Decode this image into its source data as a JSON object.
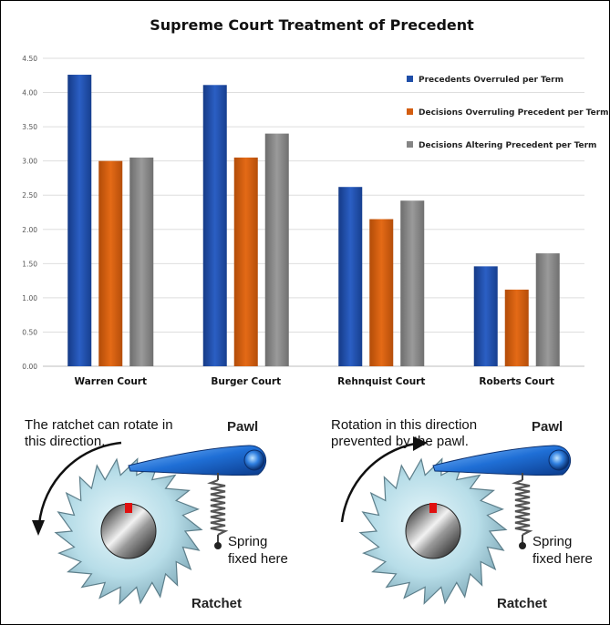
{
  "chart_data": {
    "type": "bar",
    "title": "Supreme Court Treatment of Precedent",
    "categories": [
      "Warren Court",
      "Burger Court",
      "Rehnquist Court",
      "Roberts Court"
    ],
    "series": [
      {
        "name": "Precedents Overruled per Term",
        "color": "#1f4ea8",
        "values": [
          4.26,
          4.11,
          2.62,
          1.46
        ]
      },
      {
        "name": "Decisions Overruling Precedent per Term",
        "color": "#d35d10",
        "values": [
          3.0,
          3.05,
          2.15,
          1.12
        ]
      },
      {
        "name": "Decisions Altering Precedent per Term",
        "color": "#858585",
        "values": [
          3.05,
          3.4,
          2.42,
          1.65
        ]
      }
    ],
    "yticks": [
      "0.00",
      "0.50",
      "1.00",
      "1.50",
      "2.00",
      "2.50",
      "3.00",
      "3.50",
      "4.00",
      "4.50"
    ],
    "ylim": [
      0,
      4.5
    ],
    "grid": true,
    "legend_position": "top-right"
  },
  "diagram": {
    "left": {
      "caption_line1": "The ratchet can rotate in",
      "caption_line2": "this direction.",
      "pawl_label": "Pawl",
      "spring_label_line1": "Spring",
      "spring_label_line2": "fixed here",
      "ratchet_label": "Ratchet"
    },
    "right": {
      "caption_line1": "Rotation in this direction",
      "caption_line2": "prevented by the pawl.",
      "pawl_label": "Pawl",
      "spring_label_line1": "Spring",
      "spring_label_line2": "fixed here",
      "ratchet_label": "Ratchet"
    }
  }
}
